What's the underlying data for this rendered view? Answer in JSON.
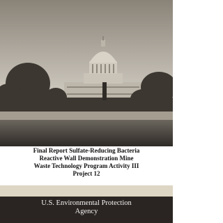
{
  "title_lines": [
    "Final Report Sulfate-Reducing Bacteria",
    "Reactive Wall Demonstration Mine",
    "Waste Technology Program Activity III",
    "Project 12"
  ],
  "publisher_lines": [
    "U.S. Environmental Protection",
    "Agency"
  ]
}
